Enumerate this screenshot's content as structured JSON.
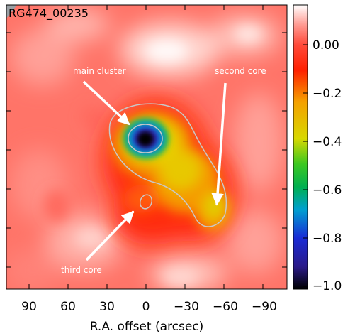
{
  "panel": {
    "object_name": "RG474_00235",
    "x_axis_label": "R.A. offset (arcsec)",
    "x_ticks": [
      "90",
      "60",
      "30",
      "0",
      "−30",
      "−60",
      "−90"
    ],
    "x_tick_values": [
      90,
      60,
      30,
      0,
      -30,
      -60,
      -90
    ],
    "annotations": [
      {
        "label": "main cluster",
        "target": "main-cluster"
      },
      {
        "label": "second core",
        "target": "second-core"
      },
      {
        "label": "third core",
        "target": "third-core"
      }
    ]
  },
  "colorbar": {
    "tick_labels": [
      "0.00",
      "−0.2",
      "−0.4",
      "−0.6",
      "−0.8",
      "−1.0"
    ],
    "tick_values": [
      0.0,
      -0.2,
      -0.4,
      -0.6,
      -0.8,
      -1.0
    ],
    "range": [
      -1.0,
      0.12
    ],
    "colormap_stops": [
      "#000000",
      "#2b1a8a",
      "#1a2bd6",
      "#00a0d0",
      "#00b050",
      "#3cc820",
      "#d8d800",
      "#f5a000",
      "#ff2000",
      "#ff4a3a",
      "#ff9a92",
      "#ffffff"
    ]
  }
}
